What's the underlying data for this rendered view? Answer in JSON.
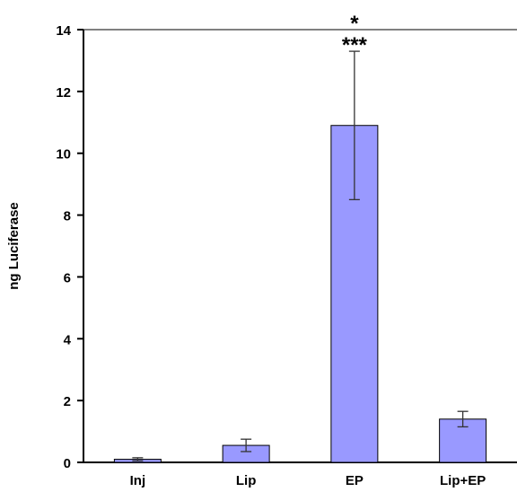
{
  "chart_data": {
    "type": "bar",
    "ylabel": "ng Luciferase",
    "xlabel": "",
    "categories": [
      "Inj",
      "Lip",
      "EP",
      "Lip+EP"
    ],
    "values": [
      0.1,
      0.55,
      10.9,
      1.4
    ],
    "errors": [
      0.05,
      0.2,
      2.4,
      0.25
    ],
    "annotations": [
      {
        "category": "EP",
        "lines": [
          "*",
          "***"
        ]
      }
    ],
    "ylim": [
      0,
      14
    ],
    "yticks": [
      "0",
      "2",
      "4",
      "6",
      "8",
      "10",
      "12",
      "14"
    ],
    "grid": false,
    "legend": "none",
    "bar_color": "#9999ff",
    "bar_edge_color": "#000000"
  }
}
